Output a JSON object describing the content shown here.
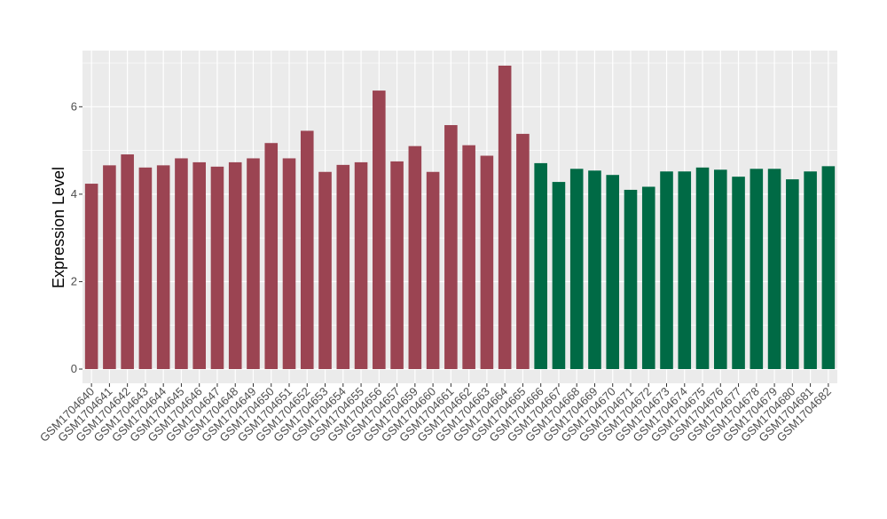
{
  "chart_data": {
    "type": "bar",
    "title": "",
    "xlabel": "",
    "ylabel": "Expression Level",
    "ylim": [
      0,
      7.3
    ],
    "yticks": [
      0,
      2,
      4,
      6
    ],
    "grid": true,
    "legend": "none",
    "categories": [
      "GSM1704640",
      "GSM1704641",
      "GSM1704642",
      "GSM1704643",
      "GSM1704644",
      "GSM1704645",
      "GSM1704646",
      "GSM1704647",
      "GSM1704648",
      "GSM1704649",
      "GSM1704650",
      "GSM1704651",
      "GSM1704652",
      "GSM1704653",
      "GSM1704654",
      "GSM1704655",
      "GSM1704656",
      "GSM1704657",
      "GSM1704659",
      "GSM1704660",
      "GSM1704661",
      "GSM1704662",
      "GSM1704663",
      "GSM1704664",
      "GSM1704665",
      "GSM1704666",
      "GSM1704667",
      "GSM1704668",
      "GSM1704669",
      "GSM1704670",
      "GSM1704671",
      "GSM1704672",
      "GSM1704673",
      "GSM1704674",
      "GSM1704675",
      "GSM1704676",
      "GSM1704677",
      "GSM1704678",
      "GSM1704679",
      "GSM1704680",
      "GSM1704681",
      "GSM1704682"
    ],
    "values": [
      4.24,
      4.66,
      4.91,
      4.61,
      4.66,
      4.82,
      4.73,
      4.63,
      4.73,
      4.82,
      5.17,
      4.82,
      5.45,
      4.51,
      4.67,
      4.73,
      6.37,
      4.75,
      5.1,
      4.51,
      5.58,
      5.12,
      4.88,
      6.94,
      5.38,
      4.71,
      4.28,
      4.58,
      4.54,
      4.44,
      4.1,
      4.17,
      4.52,
      4.52,
      4.61,
      4.56,
      4.4,
      4.58,
      4.58,
      4.34,
      4.52,
      4.64
    ],
    "groups": [
      0,
      0,
      0,
      0,
      0,
      0,
      0,
      0,
      0,
      0,
      0,
      0,
      0,
      0,
      0,
      0,
      0,
      0,
      0,
      0,
      0,
      0,
      0,
      0,
      0,
      1,
      1,
      1,
      1,
      1,
      1,
      1,
      1,
      1,
      1,
      1,
      1,
      1,
      1,
      1,
      1,
      1
    ],
    "group_colors": [
      "#9b4452",
      "#006a45"
    ],
    "panel_color": "#ebebeb",
    "gridline_color": "#ffffff"
  }
}
